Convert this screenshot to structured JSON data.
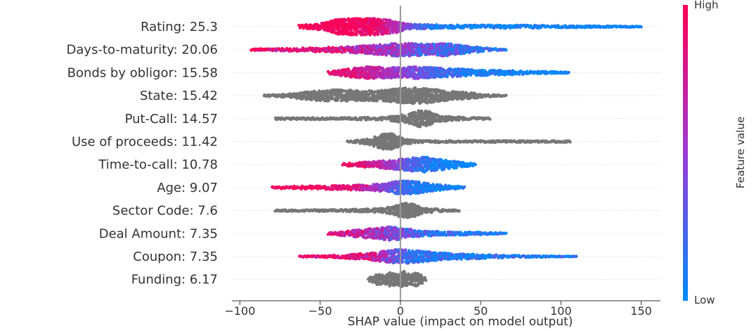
{
  "chart_data": {
    "type": "scatter",
    "subtype": "shap-beeswarm",
    "xlabel": "SHAP value (impact on model output)",
    "xlim": [
      -105,
      162
    ],
    "xticks": [
      -100,
      -50,
      0,
      50,
      100,
      150
    ],
    "xtick_labels": [
      "−100",
      "−50",
      "0",
      "50",
      "100",
      "150"
    ],
    "zero_line": 0,
    "colorbar": {
      "title": "Feature value",
      "high_label": "High",
      "low_label": "Low",
      "high_color": "#ff0052",
      "low_color": "#008bfb",
      "categorical_color": "#777777"
    },
    "features": [
      {
        "label": "Rating: 25.3",
        "colored": true,
        "min": -63,
        "max": 150,
        "profile": [
          [
            -63,
            0.15
          ],
          [
            -50,
            0.35
          ],
          [
            -40,
            0.8
          ],
          [
            -30,
            0.9
          ],
          [
            -20,
            0.95
          ],
          [
            -10,
            0.8
          ],
          [
            -2,
            0.65
          ],
          [
            5,
            0.3
          ],
          [
            20,
            0.22
          ],
          [
            50,
            0.18
          ],
          [
            90,
            0.15
          ],
          [
            110,
            0.12
          ],
          [
            135,
            0.08
          ],
          [
            145,
            0.06
          ],
          [
            150,
            0.03
          ]
        ],
        "color_pivot": 2,
        "color_width": 8
      },
      {
        "label": "Days-to-maturity: 20.06",
        "colored": true,
        "min": -93,
        "max": 66,
        "profile": [
          [
            -93,
            0.08
          ],
          [
            -80,
            0.12
          ],
          [
            -60,
            0.2
          ],
          [
            -40,
            0.28
          ],
          [
            -20,
            0.45
          ],
          [
            -5,
            0.7
          ],
          [
            5,
            0.72
          ],
          [
            15,
            0.6
          ],
          [
            28,
            0.7
          ],
          [
            40,
            0.45
          ],
          [
            55,
            0.15
          ],
          [
            66,
            0.05
          ]
        ],
        "color_pivot": -5,
        "color_width": 25,
        "color_invert": true
      },
      {
        "label": "Bonds by obligor: 15.58",
        "colored": true,
        "min": -45,
        "max": 105,
        "profile": [
          [
            -45,
            0.15
          ],
          [
            -30,
            0.5
          ],
          [
            -20,
            0.65
          ],
          [
            -10,
            0.6
          ],
          [
            0,
            0.55
          ],
          [
            10,
            0.65
          ],
          [
            25,
            0.5
          ],
          [
            45,
            0.35
          ],
          [
            70,
            0.22
          ],
          [
            90,
            0.15
          ],
          [
            105,
            0.06
          ]
        ],
        "color_pivot": 0,
        "color_width": 18
      },
      {
        "label": "State: 15.42",
        "colored": false,
        "min": -85,
        "max": 66,
        "profile": [
          [
            -85,
            0.08
          ],
          [
            -70,
            0.2
          ],
          [
            -55,
            0.5
          ],
          [
            -40,
            0.65
          ],
          [
            -25,
            0.55
          ],
          [
            -10,
            0.6
          ],
          [
            5,
            0.9
          ],
          [
            15,
            0.85
          ],
          [
            30,
            0.5
          ],
          [
            45,
            0.3
          ],
          [
            60,
            0.1
          ],
          [
            66,
            0.05
          ]
        ]
      },
      {
        "label": "Put-Call: 14.57",
        "colored": false,
        "min": -78,
        "max": 56,
        "profile": [
          [
            -78,
            0.1
          ],
          [
            -40,
            0.12
          ],
          [
            -10,
            0.15
          ],
          [
            5,
            0.5
          ],
          [
            12,
            0.9
          ],
          [
            18,
            0.8
          ],
          [
            25,
            0.3
          ],
          [
            40,
            0.15
          ],
          [
            56,
            0.08
          ]
        ]
      },
      {
        "label": "Use of proceeds: 11.42",
        "colored": false,
        "min": -33,
        "max": 106,
        "profile": [
          [
            -33,
            0.06
          ],
          [
            -20,
            0.3
          ],
          [
            -10,
            0.9
          ],
          [
            -5,
            0.85
          ],
          [
            2,
            0.35
          ],
          [
            10,
            0.12
          ],
          [
            50,
            0.1
          ],
          [
            90,
            0.1
          ],
          [
            106,
            0.08
          ]
        ]
      },
      {
        "label": "Time-to-call: 10.78",
        "colored": true,
        "min": -36,
        "max": 47,
        "profile": [
          [
            -36,
            0.12
          ],
          [
            -20,
            0.3
          ],
          [
            -8,
            0.45
          ],
          [
            5,
            0.7
          ],
          [
            15,
            0.85
          ],
          [
            25,
            0.6
          ],
          [
            35,
            0.35
          ],
          [
            47,
            0.1
          ]
        ],
        "color_pivot": -4,
        "color_width": 10
      },
      {
        "label": "Age: 9.07",
        "colored": true,
        "min": -80,
        "max": 40,
        "profile": [
          [
            -80,
            0.1
          ],
          [
            -60,
            0.18
          ],
          [
            -40,
            0.22
          ],
          [
            -20,
            0.3
          ],
          [
            -8,
            0.5
          ],
          [
            0,
            0.75
          ],
          [
            8,
            0.7
          ],
          [
            20,
            0.4
          ],
          [
            30,
            0.25
          ],
          [
            40,
            0.08
          ]
        ],
        "color_pivot": -12,
        "color_width": 10
      },
      {
        "label": "Sector Code: 7.6",
        "colored": false,
        "min": -78,
        "max": 37,
        "profile": [
          [
            -78,
            0.08
          ],
          [
            -40,
            0.12
          ],
          [
            -15,
            0.2
          ],
          [
            -5,
            0.4
          ],
          [
            2,
            0.85
          ],
          [
            8,
            0.7
          ],
          [
            14,
            0.3
          ],
          [
            25,
            0.15
          ],
          [
            37,
            0.06
          ]
        ]
      },
      {
        "label": "Deal Amount: 7.35",
        "colored": true,
        "min": -45,
        "max": 66,
        "profile": [
          [
            -45,
            0.1
          ],
          [
            -30,
            0.35
          ],
          [
            -15,
            0.6
          ],
          [
            -5,
            0.75
          ],
          [
            5,
            0.5
          ],
          [
            15,
            0.3
          ],
          [
            30,
            0.2
          ],
          [
            50,
            0.15
          ],
          [
            66,
            0.05
          ]
        ],
        "color_pivot": -10,
        "color_width": 15,
        "color_invert": true
      },
      {
        "label": "Coupon: 7.35",
        "colored": true,
        "min": -63,
        "max": 110,
        "profile": [
          [
            -63,
            0.05
          ],
          [
            -40,
            0.15
          ],
          [
            -20,
            0.35
          ],
          [
            -8,
            0.65
          ],
          [
            0,
            0.8
          ],
          [
            10,
            0.65
          ],
          [
            25,
            0.4
          ],
          [
            45,
            0.25
          ],
          [
            65,
            0.15
          ],
          [
            85,
            0.08
          ],
          [
            95,
            0.06
          ],
          [
            110,
            0.03
          ]
        ],
        "color_pivot": -8,
        "color_width": 8,
        "color_invert": true
      },
      {
        "label": "Funding: 6.17",
        "colored": false,
        "min": -20,
        "max": 16,
        "profile": [
          [
            -20,
            0.15
          ],
          [
            -14,
            0.6
          ],
          [
            -10,
            0.45
          ],
          [
            -6,
            0.8
          ],
          [
            -2,
            0.55
          ],
          [
            2,
            0.9
          ],
          [
            6,
            0.5
          ],
          [
            10,
            0.75
          ],
          [
            14,
            0.4
          ],
          [
            16,
            0.1
          ]
        ]
      }
    ]
  }
}
